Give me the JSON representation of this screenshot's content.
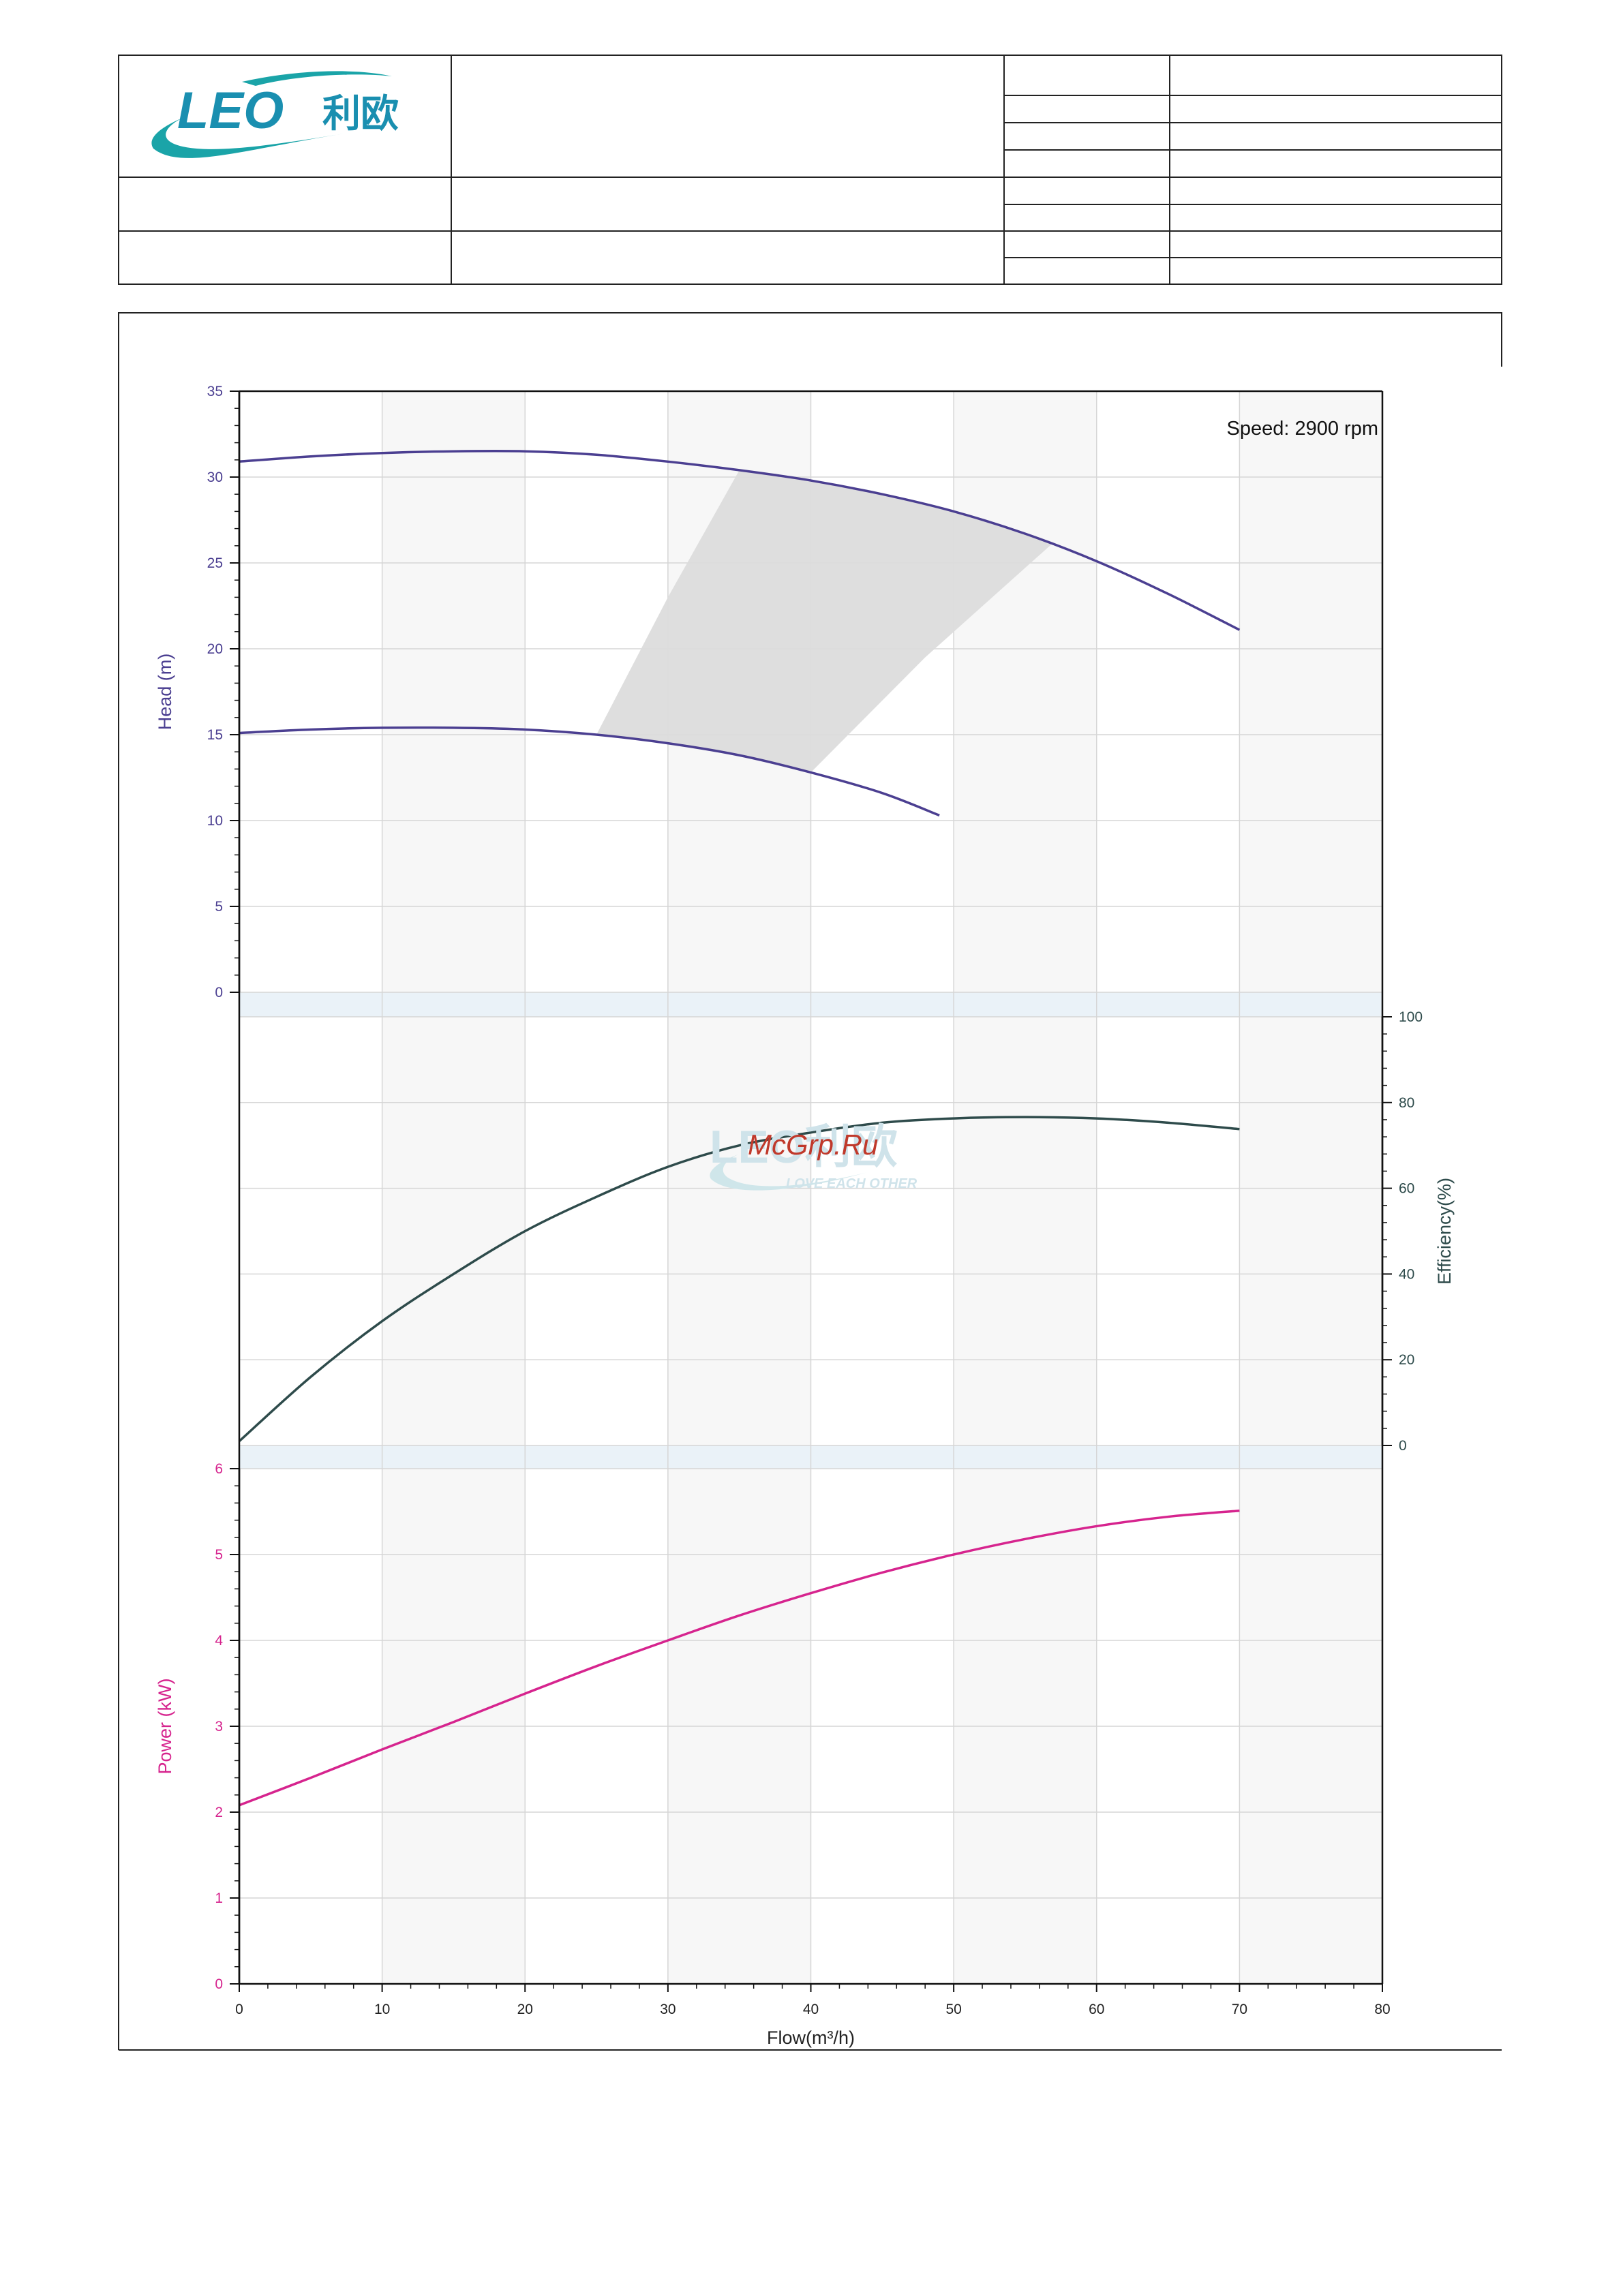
{
  "header": {
    "logo_text_latin": "LEO",
    "logo_text_cn": "利欧"
  },
  "chart_data": {
    "type": "line",
    "speed_note": "Speed: 2900 rpm",
    "xlabel": "Flow(m³/h)",
    "xlim": [
      0,
      80
    ],
    "x_ticks": [
      "0",
      "10",
      "20",
      "30",
      "40",
      "50",
      "60",
      "70",
      "80"
    ],
    "watermark": {
      "text": "McGrp.Ru",
      "logo_text": "LEO利欧",
      "logo_slogan": "LOVE EACH OTHER"
    },
    "panels": [
      {
        "id": "head",
        "ylabel": "Head (m)",
        "ylim": [
          0,
          35
        ],
        "y_ticks": [
          "0",
          "5",
          "10",
          "15",
          "20",
          "25",
          "30",
          "35"
        ],
        "axis_side": "left",
        "color": "#4b3f91",
        "series": [
          {
            "x": [
              0,
              5,
              10,
              15,
              20,
              25,
              30,
              35,
              40,
              45,
              50,
              55,
              60,
              65,
              70
            ],
            "y": [
              30.9,
              31.2,
              31.4,
              31.5,
              31.5,
              31.3,
              30.9,
              30.4,
              29.8,
              29.0,
              28.0,
              26.7,
              25.1,
              23.2,
              21.1
            ]
          },
          {
            "x": [
              0,
              5,
              10,
              15,
              20,
              25,
              30,
              35,
              40,
              45,
              49
            ],
            "y": [
              15.1,
              15.3,
              15.4,
              15.4,
              15.3,
              15.0,
              14.5,
              13.8,
              12.8,
              11.6,
              10.3
            ]
          }
        ],
        "operating_range": {
          "color": "#dcdcdc",
          "left_boundary": {
            "x": [
              25,
              30,
              35
            ],
            "y": [
              15.0,
              23.0,
              30.4
            ]
          },
          "right_boundary": {
            "x": [
              40,
              48,
              57
            ],
            "y": [
              12.8,
              19.5,
              26.2
            ]
          }
        }
      },
      {
        "id": "efficiency",
        "ylabel": "Efficiency(%)",
        "ylim": [
          0,
          100
        ],
        "y_ticks": [
          "0",
          "20",
          "40",
          "60",
          "80",
          "100"
        ],
        "axis_side": "right",
        "color": "#2e4b4b",
        "series": [
          {
            "x": [
              0,
              5,
              10,
              15,
              20,
              25,
              30,
              35,
              40,
              45,
              50,
              55,
              60,
              65,
              70
            ],
            "y": [
              1,
              16,
              29,
              40,
              50,
              58,
              65,
              70,
              73,
              75.3,
              76.3,
              76.6,
              76.3,
              75.3,
              73.8
            ]
          }
        ]
      },
      {
        "id": "power",
        "ylabel": "Power (kW)",
        "ylim": [
          0,
          6
        ],
        "y_ticks": [
          "0",
          "1",
          "2",
          "3",
          "4",
          "5",
          "6"
        ],
        "axis_side": "left",
        "color": "#d6248e",
        "series": [
          {
            "x": [
              0,
              5,
              10,
              15,
              20,
              25,
              30,
              35,
              40,
              45,
              50,
              55,
              60,
              65,
              70
            ],
            "y": [
              2.08,
              2.4,
              2.73,
              3.05,
              3.38,
              3.7,
              4.0,
              4.29,
              4.55,
              4.79,
              5.0,
              5.18,
              5.33,
              5.44,
              5.51
            ]
          }
        ]
      }
    ]
  }
}
